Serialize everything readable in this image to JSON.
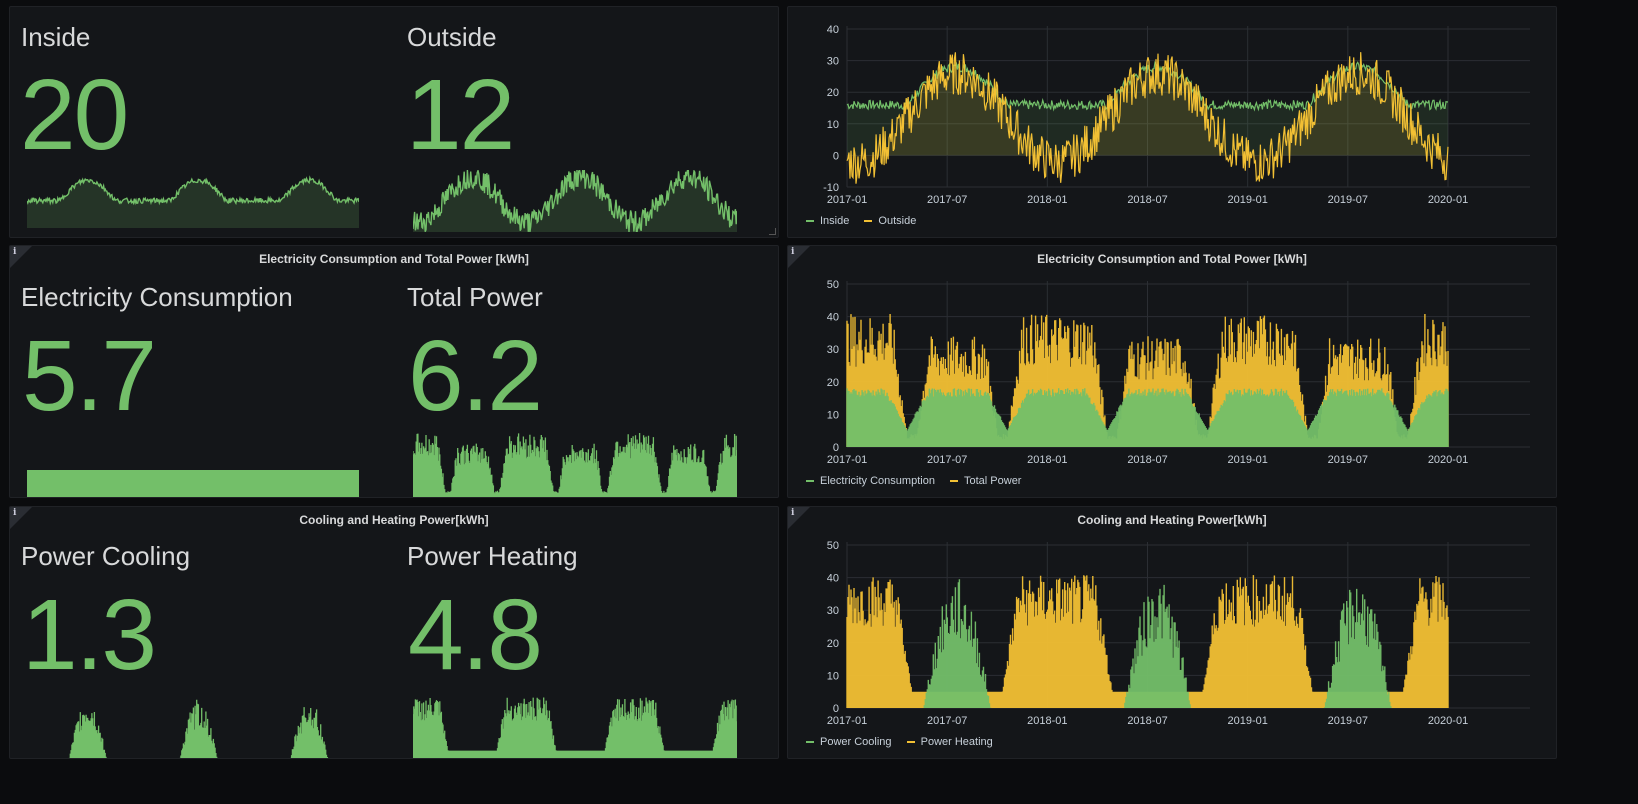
{
  "colors": {
    "green": "#73bf69",
    "yellow": "#f2c034",
    "grid": "#2b2e33",
    "axis_text": "#c7d0d9"
  },
  "info_icon": "i",
  "row1": {
    "stat": {
      "left": {
        "label": "Inside",
        "value": "20"
      },
      "right": {
        "label": "Outside",
        "value": "12"
      }
    },
    "graph": {
      "title": "",
      "legend": [
        "Inside",
        "Outside"
      ]
    }
  },
  "row2": {
    "stat": {
      "title": "Electricity Consumption and Total Power [kWh]",
      "left": {
        "label": "Electricity Consumption",
        "value": "5.7"
      },
      "right": {
        "label": "Total Power",
        "value": "6.2"
      }
    },
    "graph": {
      "title": "Electricity Consumption and Total Power [kWh]",
      "legend": [
        "Electricity Consumption",
        "Total Power"
      ]
    }
  },
  "row3": {
    "stat": {
      "title": "Cooling and Heating Power[kWh]",
      "left": {
        "label": "Power Cooling",
        "value": "1.3"
      },
      "right": {
        "label": "Power Heating",
        "value": "4.8"
      }
    },
    "graph": {
      "title": "Cooling and Heating Power[kWh]",
      "legend": [
        "Power Cooling",
        "Power Heating"
      ]
    }
  },
  "chart_data": [
    {
      "type": "area",
      "x_ticks": [
        "2017-01",
        "2017-07",
        "2018-01",
        "2018-07",
        "2019-01",
        "2019-07",
        "2020-01"
      ],
      "y_ticks": [
        -10,
        0,
        10,
        20,
        30,
        40
      ],
      "ylim": [
        -10,
        40
      ],
      "grid": true,
      "legend_position": "bottom-left",
      "series": [
        {
          "name": "Inside",
          "color": "#73bf69",
          "approx_range": [
            15,
            30
          ]
        },
        {
          "name": "Outside",
          "color": "#f2c034",
          "approx_range": [
            -6,
            30
          ]
        }
      ]
    },
    {
      "type": "area",
      "x_ticks": [
        "2017-01",
        "2017-07",
        "2018-01",
        "2018-07",
        "2019-01",
        "2019-07",
        "2020-01"
      ],
      "y_ticks": [
        0,
        10,
        20,
        30,
        40,
        50
      ],
      "ylim": [
        0,
        50
      ],
      "grid": true,
      "legend_position": "bottom-left",
      "series": [
        {
          "name": "Electricity Consumption",
          "color": "#73bf69",
          "approx_range": [
            5,
            18
          ]
        },
        {
          "name": "Total Power",
          "color": "#f2c034",
          "approx_range": [
            0,
            41
          ]
        }
      ]
    },
    {
      "type": "area",
      "x_ticks": [
        "2017-01",
        "2017-07",
        "2018-01",
        "2018-07",
        "2019-01",
        "2019-07",
        "2020-01"
      ],
      "y_ticks": [
        0,
        10,
        20,
        30,
        40,
        50
      ],
      "ylim": [
        0,
        50
      ],
      "grid": true,
      "legend_position": "bottom-left",
      "series": [
        {
          "name": "Power Cooling",
          "color": "#73bf69",
          "approx_range": [
            0,
            40
          ]
        },
        {
          "name": "Power Heating",
          "color": "#f2c034",
          "approx_range": [
            0,
            41
          ]
        }
      ]
    }
  ]
}
